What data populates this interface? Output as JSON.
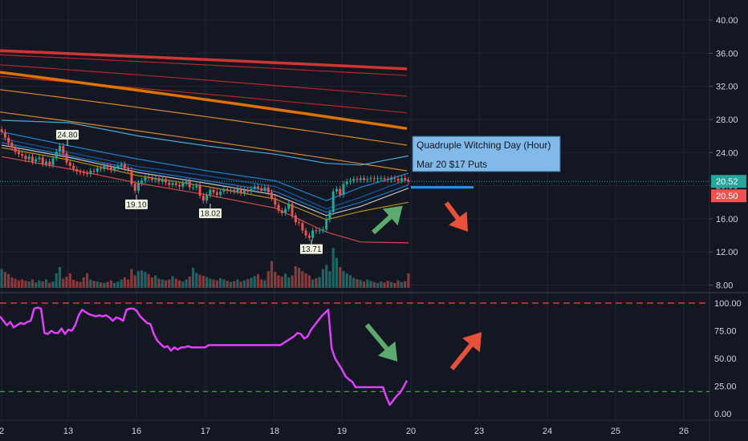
{
  "chart_data": [
    {
      "type": "candlestick",
      "y_ticks": [
        "40.00",
        "36.00",
        "32.00",
        "28.00",
        "24.00",
        "20.00",
        "16.00",
        "12.00",
        "8.00"
      ],
      "ylim": [
        8,
        41
      ],
      "x_ticks": [
        "2",
        "13",
        "16",
        "17",
        "18",
        "19",
        "20",
        "23",
        "24",
        "25",
        "26"
      ],
      "last_price": "20.52",
      "price_line_value": "20.50",
      "price_labels": [
        {
          "text": "24.80",
          "value": 24.8
        },
        {
          "text": "19.10",
          "value": 19.1
        },
        {
          "text": "18.02",
          "value": 18.02
        },
        {
          "text": "13.71",
          "value": 13.71
        }
      ],
      "annotation": [
        "Quadruple Witching Day (Hour)",
        "Mar 20 $17 Puts"
      ],
      "annotation_line_value": 19.8,
      "close_series": [
        26.5,
        25.8,
        25.2,
        24.6,
        24.1,
        23.8,
        23.6,
        23.2,
        23.5,
        22.9,
        23.2,
        23.4,
        22.6,
        22.9,
        22.5,
        23.3,
        24.1,
        24.8,
        23.9,
        22.8,
        22.4,
        22.0,
        21.7,
        21.6,
        21.5,
        21.4,
        21.8,
        21.7,
        22.1,
        22.0,
        22.4,
        22.2,
        21.9,
        22.2,
        22.4,
        22.6,
        22.1,
        21.9,
        20.2,
        19.4,
        20.3,
        20.6,
        21.0,
        20.9,
        20.7,
        20.9,
        20.5,
        20.8,
        20.4,
        20.1,
        20.3,
        20.1,
        19.9,
        20.3,
        20.5,
        19.8,
        19.8,
        20.0,
        18.8,
        18.2,
        18.9,
        19.5,
        19.2,
        18.9,
        19.3,
        19.6,
        19.4,
        19.5,
        19.3,
        19.6,
        19.1,
        19.5,
        19.3,
        19.6,
        19.9,
        19.7,
        19.4,
        19.8,
        19.2,
        18.5,
        17.7,
        17.0,
        16.7,
        17.2,
        17.8,
        16.4,
        15.6,
        15.5,
        14.6,
        14.0,
        13.7,
        14.6,
        14.5,
        14.6,
        14.7,
        15.9,
        16.8,
        19.3,
        19.6,
        18.9,
        20.2,
        20.5,
        20.6,
        20.8,
        20.7,
        20.9,
        20.7,
        20.8,
        20.9,
        20.8,
        20.9,
        20.9,
        20.8,
        20.7,
        20.9,
        20.8,
        20.6,
        20.9,
        20.7,
        20.5
      ],
      "volume_series": [
        0.45,
        0.38,
        0.33,
        0.25,
        0.22,
        0.18,
        0.2,
        0.17,
        0.15,
        0.2,
        0.13,
        0.18,
        0.15,
        0.2,
        0.12,
        0.15,
        0.35,
        0.5,
        0.22,
        0.27,
        0.35,
        0.19,
        0.16,
        0.14,
        0.25,
        0.35,
        0.2,
        0.17,
        0.15,
        0.13,
        0.12,
        0.14,
        0.18,
        0.12,
        0.15,
        0.2,
        0.25,
        0.2,
        0.45,
        0.3,
        0.4,
        0.42,
        0.38,
        0.33,
        0.25,
        0.3,
        0.22,
        0.2,
        0.18,
        0.2,
        0.28,
        0.22,
        0.18,
        0.15,
        0.2,
        0.27,
        0.48,
        0.36,
        0.32,
        0.29,
        0.26,
        0.22,
        0.2,
        0.18,
        0.23,
        0.2,
        0.17,
        0.14,
        0.16,
        0.2,
        0.15,
        0.18,
        0.21,
        0.24,
        0.28,
        0.33,
        0.2,
        0.18,
        0.4,
        0.64,
        0.38,
        0.3,
        0.27,
        0.34,
        0.25,
        0.3,
        0.52,
        0.48,
        0.4,
        0.35,
        0.3,
        0.2,
        0.23,
        0.26,
        0.45,
        0.55,
        0.4,
        0.96,
        0.72,
        0.5,
        0.4,
        0.35,
        0.3,
        0.24,
        0.21,
        0.19,
        0.15,
        0.2,
        0.17,
        0.14,
        0.12,
        0.15,
        0.13,
        0.17,
        0.14,
        0.12,
        0.18,
        0.14,
        0.16,
        0.35
      ],
      "ma_lines": [
        {
          "color": "#e53935",
          "width": 3.5,
          "start": 36.3,
          "end": 34.1
        },
        {
          "color": "#c62828",
          "width": 1.2,
          "start": 35.8,
          "end": 33.3
        },
        {
          "color": "#c62828",
          "width": 1.2,
          "start": 34.6,
          "end": 30.8
        },
        {
          "color": "#c62828",
          "width": 1.2,
          "start": 33.2,
          "end": 28.8
        },
        {
          "color": "#f57c00",
          "width": 3.5,
          "start": 33.7,
          "end": 26.9
        },
        {
          "color": "#ef8f2f",
          "width": 1.2,
          "start": 31.6,
          "end": 24.9
        },
        {
          "color": "#ef8f2f",
          "width": 1.2,
          "start": 28.9,
          "end": 21.8
        }
      ],
      "band_lines": [
        {
          "color": "#4fc3f7",
          "width": 1.2,
          "points": [
            [
              0,
              27.9
            ],
            [
              20,
              27.6
            ],
            [
              40,
              26.0
            ],
            [
              60,
              24.8
            ],
            [
              80,
              23.8
            ],
            [
              95,
              22.7
            ],
            [
              105,
              22.5
            ],
            [
              119,
              23.6
            ]
          ]
        },
        {
          "color": "#2196f3",
          "width": 1.2,
          "points": [
            [
              0,
              26.5
            ],
            [
              20,
              24.8
            ],
            [
              40,
              23.2
            ],
            [
              60,
              21.8
            ],
            [
              80,
              20.6
            ],
            [
              95,
              18.2
            ],
            [
              105,
              19.8
            ],
            [
              119,
              21.5
            ]
          ]
        },
        {
          "color": "#1565c0",
          "width": 1.2,
          "points": [
            [
              0,
              25.7
            ],
            [
              20,
              24.0
            ],
            [
              40,
              22.3
            ],
            [
              60,
              21.2
            ],
            [
              80,
              19.9
            ],
            [
              95,
              17.2
            ],
            [
              105,
              18.6
            ],
            [
              119,
              20.8
            ]
          ]
        },
        {
          "color": "#1e88e5",
          "width": 1.2,
          "points": [
            [
              0,
              25.2
            ],
            [
              20,
              23.6
            ],
            [
              40,
              21.9
            ],
            [
              60,
              20.6
            ],
            [
              80,
              19.3
            ],
            [
              95,
              16.8
            ],
            [
              105,
              18.0
            ],
            [
              119,
              20.1
            ]
          ]
        },
        {
          "color": "#e0e0e0",
          "width": 1.2,
          "points": [
            [
              0,
              24.9
            ],
            [
              20,
              23.4
            ],
            [
              40,
              21.6
            ],
            [
              60,
              20.3
            ],
            [
              80,
              18.9
            ],
            [
              95,
              16.4
            ],
            [
              105,
              17.5
            ],
            [
              119,
              19.7
            ]
          ]
        },
        {
          "color": "#d4a017",
          "width": 1.2,
          "points": [
            [
              0,
              24.6
            ],
            [
              20,
              23.1
            ],
            [
              40,
              21.2
            ],
            [
              60,
              19.9
            ],
            [
              80,
              18.4
            ],
            [
              95,
              15.9
            ],
            [
              105,
              16.9
            ],
            [
              119,
              18.0
            ]
          ]
        },
        {
          "color": "#ef5350",
          "width": 1.2,
          "points": [
            [
              0,
              23.5
            ],
            [
              20,
              22.0
            ],
            [
              40,
              20.3
            ],
            [
              60,
              18.9
            ],
            [
              80,
              17.3
            ],
            [
              95,
              14.4
            ],
            [
              105,
              13.2
            ],
            [
              119,
              13.1
            ]
          ]
        }
      ]
    },
    {
      "type": "line",
      "y_ticks": [
        "100.00",
        "75.00",
        "50.00",
        "25.00",
        "0.00"
      ],
      "ylim": [
        0,
        100
      ],
      "upper_level": 100,
      "lower_level": 20,
      "values": [
        88,
        84,
        80,
        83,
        78,
        80,
        82,
        81,
        83,
        84,
        95,
        96,
        95,
        73,
        72,
        75,
        73,
        73,
        77,
        72,
        76,
        75,
        80,
        89,
        94,
        92,
        90,
        89,
        88,
        89,
        88,
        89,
        87,
        84,
        87,
        86,
        84,
        94,
        95,
        95,
        93,
        88,
        85,
        82,
        81,
        72,
        66,
        63,
        60,
        61,
        57,
        60,
        58,
        60,
        60,
        61,
        60,
        60,
        60,
        60,
        60,
        62,
        62,
        62,
        62,
        62,
        62,
        62,
        62,
        62,
        62,
        62,
        62,
        62,
        62,
        62,
        62,
        62,
        62,
        62,
        62,
        62,
        62,
        64,
        66,
        68,
        70,
        73,
        72,
        68,
        70,
        76,
        80,
        84,
        88,
        91,
        94,
        59,
        50,
        45,
        40,
        34,
        31,
        29,
        24,
        24,
        24,
        24,
        24,
        24,
        24,
        24,
        24,
        15,
        8,
        12,
        16,
        19,
        24,
        30
      ]
    }
  ]
}
